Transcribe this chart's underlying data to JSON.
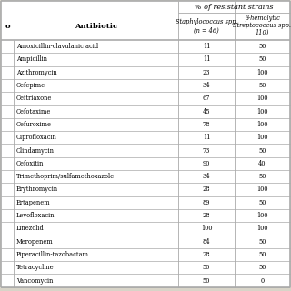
{
  "title_main": "% of resistant strains",
  "col_header_1": "Antibiotic",
  "col_header_2_line1": "Staphylococcus spp.",
  "col_header_2_line2": "(n = 46)",
  "col_header_3_line1": "β-hemolytic",
  "col_header_3_line2": "Streptococcus spp.",
  "col_header_3_line3": "110)",
  "left_col_label": "o",
  "rows": [
    [
      "Amoxicillin-clavulanic acid",
      "11",
      "50"
    ],
    [
      "Ampicillin",
      "11",
      "50"
    ],
    [
      "Azithromycin",
      "23",
      "100"
    ],
    [
      "Cefepime",
      "34",
      "50"
    ],
    [
      "Ceftriaxone",
      "67",
      "100"
    ],
    [
      "Cefotaxime",
      "45",
      "100"
    ],
    [
      "Cefuroxime",
      "78",
      "100"
    ],
    [
      "Ciprofloxacin",
      "11",
      "100"
    ],
    [
      "Clindamycin",
      "73",
      "50"
    ],
    [
      "Cefoxitin",
      "90",
      "40"
    ],
    [
      "Trimethoprim/sulfamethoxazole",
      "34",
      "50"
    ],
    [
      "Erythromycin",
      "28",
      "100"
    ],
    [
      "Ertapenem",
      "89",
      "50"
    ],
    [
      "Levofloxacin",
      "28",
      "100"
    ],
    [
      "Linezolid",
      "100",
      "100"
    ],
    [
      "Meropenem",
      "84",
      "50"
    ],
    [
      "Piperacillin-tazobactam",
      "28",
      "50"
    ],
    [
      "Tetracycline",
      "50",
      "50"
    ],
    [
      "Vancomycin",
      "50",
      "0"
    ]
  ],
  "bg_color": "#ffffff",
  "line_color": "#aaaaaa",
  "fig_bg": "#d8d4c8"
}
